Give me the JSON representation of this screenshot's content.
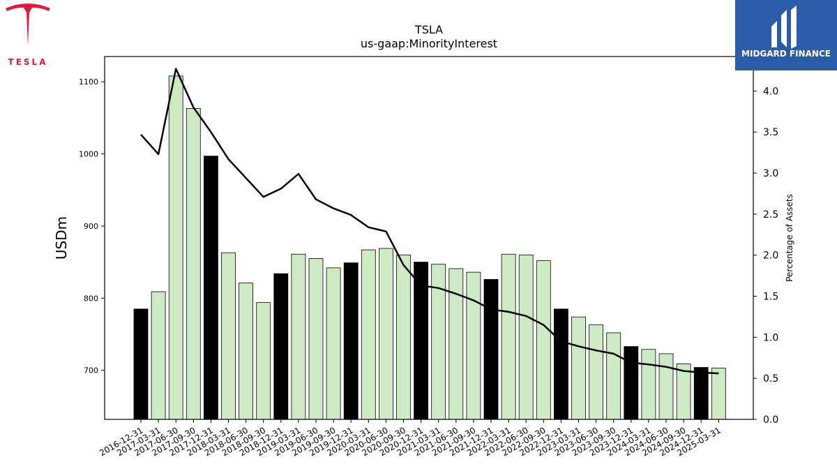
{
  "header": {
    "title": "TSLA",
    "subtitle": "us-gaap:MinorityInterest",
    "brand_left": "TESLA",
    "brand_right": "MIDGARD FINANCE"
  },
  "colors": {
    "bar_quarter": "#cdeac4",
    "bar_year_end": "#000000",
    "line": "#000000",
    "tesla_red": "#e31937",
    "midgard_blue": "#2a5aa8"
  },
  "chart_data": {
    "type": "bar",
    "ylabel": "USDm",
    "y2label": "Percentage of Assets",
    "ylim": [
      632,
      1135
    ],
    "y2lim": [
      0,
      4.42
    ],
    "yticks": [
      700,
      800,
      900,
      1000,
      1100
    ],
    "y2ticks": [
      "0.0",
      "0.5",
      "1.0",
      "1.5",
      "2.0",
      "2.5",
      "3.0",
      "3.5",
      "4.0"
    ],
    "categories": [
      "2016-12-31",
      "2017-03-31",
      "2017-06-30",
      "2017-09-30",
      "2017-12-31",
      "2018-03-31",
      "2018-06-30",
      "2018-09-30",
      "2018-12-31",
      "2019-03-31",
      "2019-06-30",
      "2019-09-30",
      "2019-12-31",
      "2020-03-31",
      "2020-06-30",
      "2020-09-30",
      "2020-12-31",
      "2021-03-31",
      "2021-06-30",
      "2021-09-30",
      "2021-12-31",
      "2022-03-31",
      "2022-06-30",
      "2022-09-30",
      "2022-12-31",
      "2023-03-31",
      "2023-06-30",
      "2023-09-30",
      "2023-12-31",
      "2024-03-31",
      "2024-06-30",
      "2024-09-30",
      "2024-12-31",
      "2025-03-31"
    ],
    "series": [
      {
        "name": "USDm",
        "type": "bar",
        "values": [
          785,
          809,
          1108,
          1063,
          997,
          863,
          821,
          794,
          834,
          861,
          855,
          842,
          849,
          867,
          869,
          860,
          850,
          847,
          841,
          836,
          826,
          861,
          860,
          852,
          785,
          774,
          763,
          752,
          733,
          729,
          723,
          709,
          704,
          703
        ]
      },
      {
        "name": "Percentage of Assets",
        "type": "line",
        "axis": "right",
        "values": [
          3.47,
          3.23,
          4.27,
          3.8,
          3.5,
          3.17,
          2.94,
          2.71,
          2.81,
          2.99,
          2.68,
          2.57,
          2.49,
          2.34,
          2.29,
          1.88,
          1.63,
          1.6,
          1.53,
          1.45,
          1.34,
          1.31,
          1.26,
          1.15,
          0.95,
          0.89,
          0.84,
          0.8,
          0.69,
          0.67,
          0.64,
          0.59,
          0.57,
          0.56
        ]
      }
    ]
  }
}
